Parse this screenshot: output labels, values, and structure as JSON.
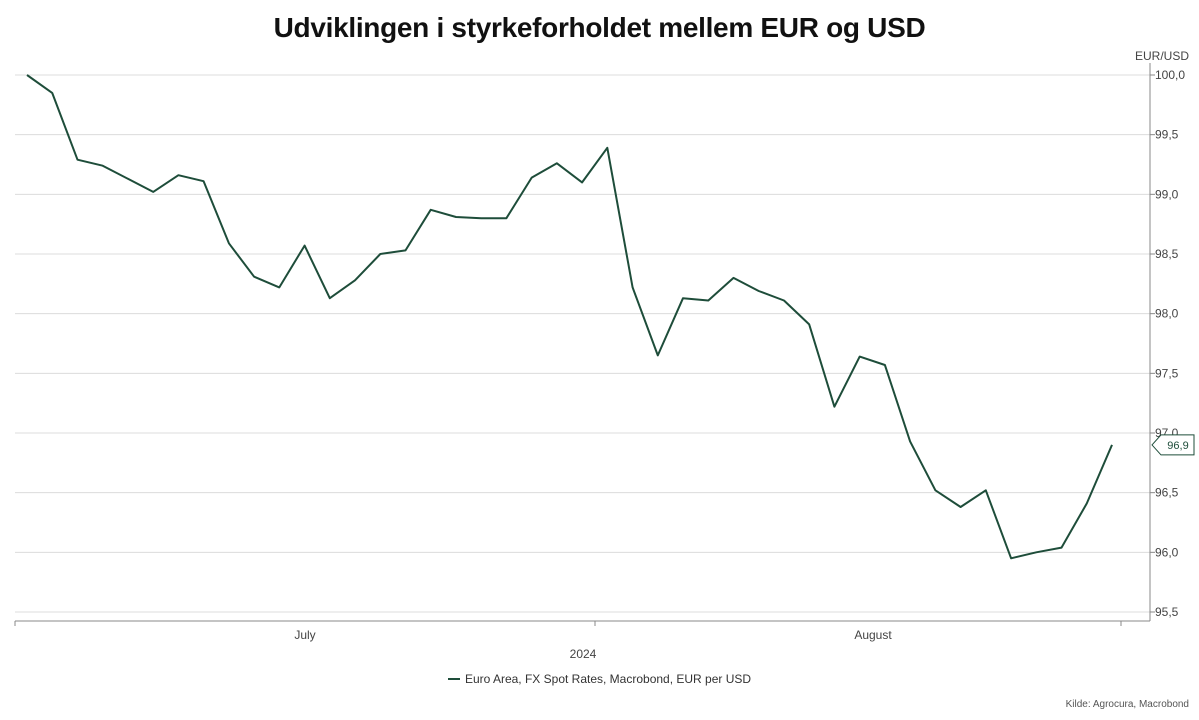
{
  "title": "Udviklingen i styrkeforholdet mellem EUR og USD",
  "source": "Kilde: Agrocura, Macrobond",
  "colors": {
    "series": "#1e4d3a",
    "grid": "#dcdcdc",
    "axis": "#888888"
  },
  "chart_data": {
    "type": "line",
    "title": "Udviklingen i styrkeforholdet mellem EUR og USD",
    "y_unit_label": "EUR/USD",
    "y_axis_position": "right",
    "ylim": [
      95.5,
      100.0
    ],
    "y_ticks": [
      "100,0",
      "99,5",
      "99,0",
      "98,5",
      "98,0",
      "97,5",
      "97,0",
      "96,5",
      "96,0",
      "95,5"
    ],
    "y_tick_values": [
      100.0,
      99.5,
      99.0,
      98.5,
      98.0,
      97.5,
      97.0,
      96.5,
      96.0,
      95.5
    ],
    "x_month_labels": [
      "July",
      "August"
    ],
    "x_year_label": "2024",
    "grid": true,
    "legend_position": "bottom",
    "series": [
      {
        "name": "Euro Area, FX Spot Rates, Macrobond, EUR per USD",
        "last_value_label": "96,9",
        "values": [
          100.0,
          99.85,
          99.29,
          99.24,
          99.13,
          99.02,
          99.16,
          99.11,
          98.59,
          98.31,
          98.22,
          98.57,
          98.13,
          98.28,
          98.5,
          98.53,
          98.87,
          98.81,
          98.8,
          98.8,
          99.14,
          99.26,
          99.1,
          99.39,
          98.22,
          97.65,
          98.13,
          98.11,
          98.3,
          98.19,
          98.11,
          97.91,
          97.22,
          97.64,
          97.57,
          96.93,
          96.52,
          96.38,
          96.52,
          95.95,
          96.0,
          96.04,
          96.41,
          96.9
        ]
      }
    ]
  }
}
